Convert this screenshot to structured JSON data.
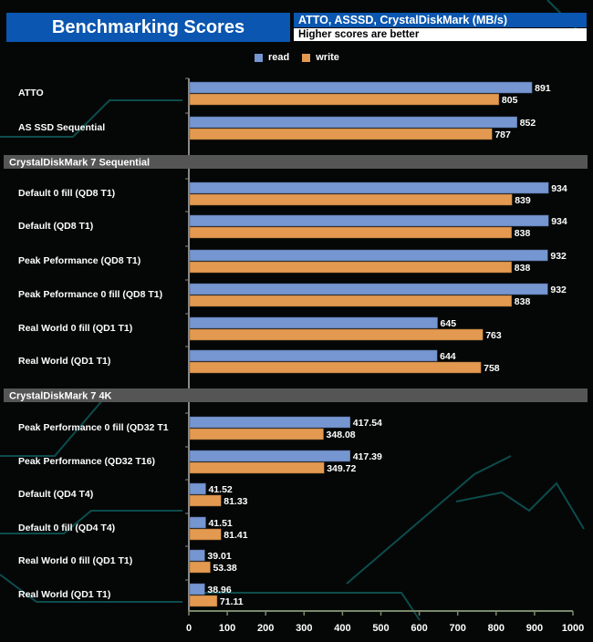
{
  "header": {
    "title": "Benchmarking Scores",
    "subtitle": "ATTO, ASSSD, CrystalDiskMark (MB/s)",
    "note": "Higher scores are better"
  },
  "chart_data": {
    "type": "bar",
    "orientation": "horizontal",
    "xlim": [
      0,
      1000
    ],
    "xticks": [
      "0",
      "100",
      "200",
      "300",
      "400",
      "500",
      "600",
      "700",
      "800",
      "900",
      "1000"
    ],
    "legend": {
      "placement": "top",
      "items": [
        "read",
        "write"
      ]
    },
    "colors": {
      "read": "#7596d0",
      "write": "#e39a50"
    },
    "sections": [
      {
        "title": "",
        "rows": [
          {
            "label": "ATTO",
            "read": 891,
            "write": 805,
            "read_label": "891",
            "write_label": "805"
          },
          {
            "label": "AS SSD Sequential",
            "read": 852,
            "write": 787,
            "read_label": "852",
            "write_label": "787"
          }
        ]
      },
      {
        "title": "CrystalDiskMark 7 Sequential",
        "rows": [
          {
            "label": "Default 0 fill (QD8 T1)",
            "read": 934,
            "write": 839,
            "read_label": "934",
            "write_label": "839"
          },
          {
            "label": "Default (QD8 T1)",
            "read": 934,
            "write": 838,
            "read_label": "934",
            "write_label": "838"
          },
          {
            "label": "Peak Peformance (QD8 T1)",
            "read": 932,
            "write": 838,
            "read_label": "932",
            "write_label": "838"
          },
          {
            "label": "Peak Peformance 0 fill (QD8 T1)",
            "read": 932,
            "write": 838,
            "read_label": "932",
            "write_label": "838"
          },
          {
            "label": "Real World 0 fill (QD1 T1)",
            "read": 645,
            "write": 763,
            "read_label": "645",
            "write_label": "763"
          },
          {
            "label": "Real World  (QD1 T1)",
            "read": 644,
            "write": 758,
            "read_label": "644",
            "write_label": "758"
          }
        ]
      },
      {
        "title": "CrystalDiskMark 7 4K",
        "rows": [
          {
            "label": "Peak Performance 0 fill (QD32 T1",
            "read": 417.54,
            "write": 348.08,
            "read_label": "417.54",
            "write_label": "348.08"
          },
          {
            "label": "Peak Performance (QD32 T16)",
            "read": 417.39,
            "write": 349.72,
            "read_label": "417.39",
            "write_label": "349.72"
          },
          {
            "label": "Default (QD4 T4)",
            "read": 41.52,
            "write": 81.33,
            "read_label": "41.52",
            "write_label": "81.33"
          },
          {
            "label": "Default 0 fill (QD4 T4)",
            "read": 41.51,
            "write": 81.41,
            "read_label": "41.51",
            "write_label": "81.41"
          },
          {
            "label": "Real World 0 fill  (QD1 T1)",
            "read": 39.01,
            "write": 53.38,
            "read_label": "39.01",
            "write_label": "53.38"
          },
          {
            "label": "Real World (QD1 T1)",
            "read": 38.96,
            "write": 71.11,
            "read_label": "38.96",
            "write_label": "71.11"
          }
        ]
      }
    ]
  }
}
